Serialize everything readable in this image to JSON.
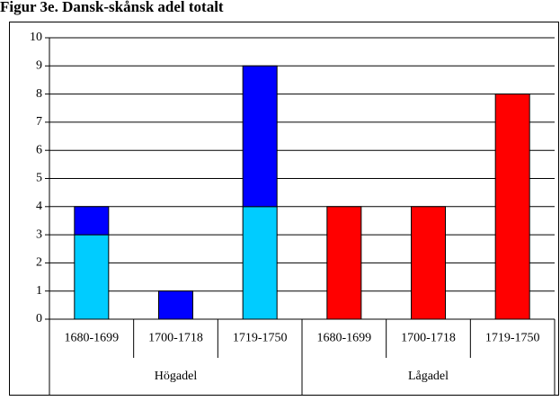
{
  "chart_data": {
    "type": "stacked_bar",
    "title": "Figur 3e. Dansk-skånsk adel totalt",
    "categories": [
      "1680-1699",
      "1700-1718",
      "1719-1750",
      "1680-1699",
      "1700-1718",
      "1719-1750"
    ],
    "group_labels": [
      "Högadel",
      "Lågadel"
    ],
    "series": [
      {
        "color": "#00ccff",
        "values": [
          3,
          0,
          4,
          0,
          0,
          0
        ]
      },
      {
        "color": "#0000ff",
        "values": [
          1,
          1,
          5,
          0,
          0,
          0
        ]
      },
      {
        "color": "#ff0000",
        "values": [
          0,
          0,
          0,
          4,
          4,
          8
        ]
      }
    ],
    "ylim": [
      0,
      10
    ],
    "yticks": [
      0,
      1,
      2,
      3,
      4,
      5,
      6,
      7,
      8,
      9,
      10
    ],
    "grid": true
  }
}
